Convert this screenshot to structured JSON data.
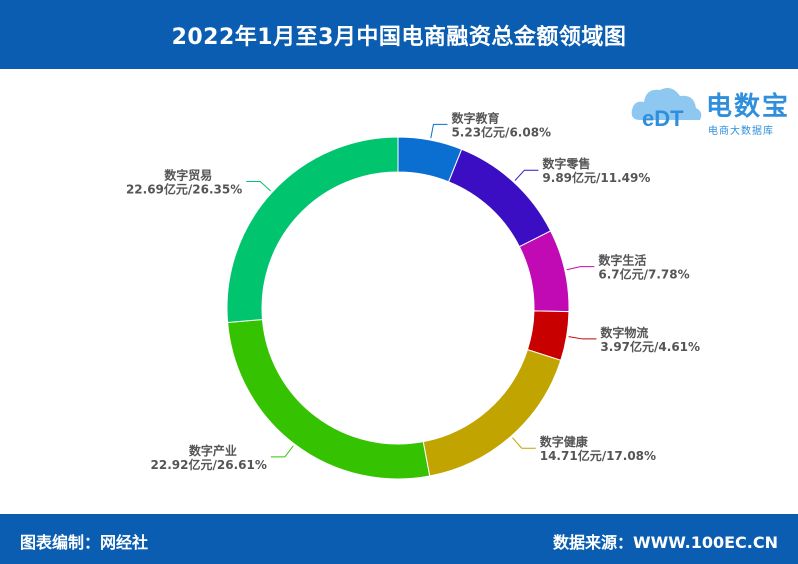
{
  "title": "2022年1月至3月中国电商融资总金额领域图",
  "footer": {
    "left": "图表编制：网经社",
    "right": "数据来源：WWW.100EC.CN"
  },
  "logo": {
    "name": "电数宝",
    "sub": "电商大数据库",
    "mark": "eDT"
  },
  "colors": {
    "header_bg": "#0a5db0",
    "label": "#555555"
  },
  "chart_data": {
    "type": "pie",
    "donut": true,
    "unit": "亿元",
    "categories": [
      "数字教育",
      "数字零售",
      "数字生活",
      "数字物流",
      "数字健康",
      "数字产业",
      "数字贸易"
    ],
    "values": [
      5.23,
      9.89,
      6.7,
      3.97,
      14.71,
      22.92,
      22.69
    ],
    "percents": [
      6.08,
      11.49,
      7.78,
      4.61,
      17.08,
      26.61,
      26.35
    ],
    "value_labels": [
      "5.23亿元/6.08%",
      "9.89亿元/11.49%",
      "6.7亿元/7.78%",
      "3.97亿元/4.61%",
      "14.71亿元/17.08%",
      "22.92亿元/26.61%",
      "22.69亿元/26.35%"
    ],
    "colors": [
      "#0a6fd0",
      "#3b0ec4",
      "#c20ab4",
      "#c80000",
      "#c2a400",
      "#35c200",
      "#00c46e"
    ]
  }
}
